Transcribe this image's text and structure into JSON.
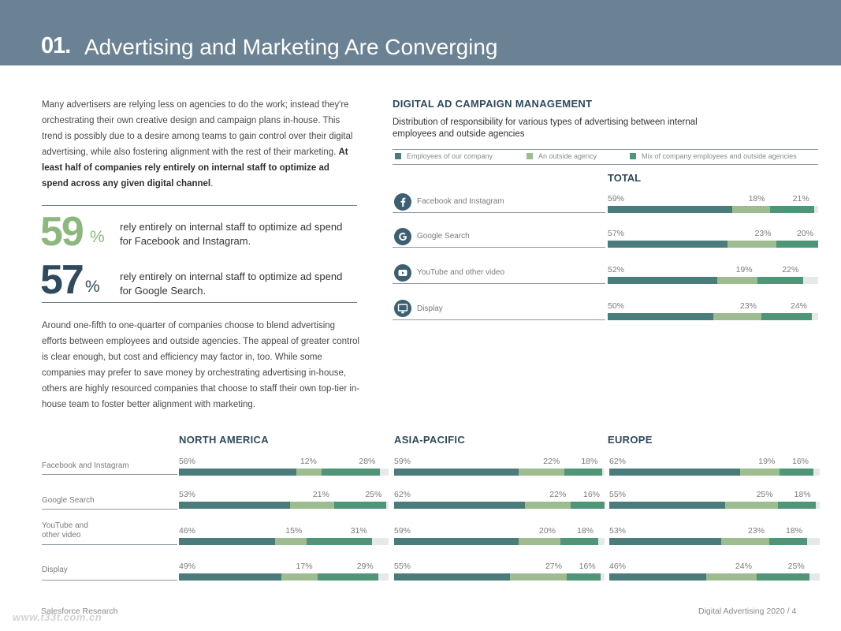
{
  "header": {
    "number": "01.",
    "title": "Advertising and Marketing Are Converging"
  },
  "intro": {
    "text": "Many advertisers are relying less on agencies to do the work; instead they're orchestrating their own creative design and campaign plans in-house. This trend is possibly due to a desire among teams to gain control over their digital advertising, while also fostering alignment with the rest of their marketing. ",
    "bold": "At least half of companies rely entirely on internal staff to optimize ad spend across any given digital channel",
    "end": "."
  },
  "stats": [
    {
      "value": "59",
      "unit": "%",
      "text": "rely entirely on internal staff to optimize ad spend for Facebook and Instagram.",
      "color": "#8db87d"
    },
    {
      "value": "57",
      "unit": "%",
      "text": "rely entirely on internal staff to optimize ad spend for Google Search.",
      "color": "#2f4a5c"
    }
  ],
  "para2": "Around one-fifth to one-quarter of companies choose to blend advertising efforts between employees and outside agencies. The appeal of greater control is clear enough, but cost and efficiency may factor in, too. While some companies may prefer to save money by orchestrating advertising in-house, others are highly resourced companies that choose to staff their own top-tier in-house team to foster better alignment with marketing.",
  "chart_meta": {
    "title": "DIGITAL AD CAMPAIGN MANAGEMENT",
    "subtitle": "Distribution of responsibility for various types of advertising between internal employees and outside agencies",
    "total_label": "TOTAL"
  },
  "legend": [
    {
      "label": "Employees of our company",
      "color": "#4a7c7c"
    },
    {
      "label": "An outside agency",
      "color": "#9dbc8f"
    },
    {
      "label": "Mix of company employees and outside agencies",
      "color": "#4f9578"
    }
  ],
  "chart_data": [
    {
      "type": "bar",
      "title": "TOTAL",
      "stacked": true,
      "orientation": "horizontal",
      "categories": [
        "Facebook and Instagram",
        "Google Search",
        "YouTube and other video",
        "Display"
      ],
      "series": [
        {
          "name": "Employees of our company",
          "values": [
            59,
            57,
            52,
            50
          ]
        },
        {
          "name": "An outside agency",
          "values": [
            18,
            23,
            19,
            23
          ]
        },
        {
          "name": "Mix of company employees and outside agencies",
          "values": [
            21,
            20,
            22,
            24
          ]
        }
      ],
      "xlim": [
        0,
        100
      ]
    },
    {
      "type": "bar",
      "title": "NORTH AMERICA",
      "stacked": true,
      "orientation": "horizontal",
      "categories": [
        "Facebook and Instagram",
        "Google Search",
        "YouTube and other video",
        "Display"
      ],
      "series": [
        {
          "name": "Employees of our company",
          "values": [
            56,
            53,
            46,
            49
          ]
        },
        {
          "name": "An outside agency",
          "values": [
            12,
            21,
            15,
            17
          ]
        },
        {
          "name": "Mix of company employees and outside agencies",
          "values": [
            28,
            25,
            31,
            29
          ]
        }
      ],
      "xlim": [
        0,
        100
      ]
    },
    {
      "type": "bar",
      "title": "ASIA-PACIFIC",
      "stacked": true,
      "orientation": "horizontal",
      "categories": [
        "Facebook and Instagram",
        "Google Search",
        "YouTube and other video",
        "Display"
      ],
      "series": [
        {
          "name": "Employees of our company",
          "values": [
            59,
            62,
            59,
            55
          ]
        },
        {
          "name": "An outside agency",
          "values": [
            22,
            22,
            20,
            27
          ]
        },
        {
          "name": "Mix of company employees and outside agencies",
          "values": [
            18,
            16,
            18,
            16
          ]
        }
      ],
      "xlim": [
        0,
        100
      ]
    },
    {
      "type": "bar",
      "title": "EUROPE",
      "stacked": true,
      "orientation": "horizontal",
      "categories": [
        "Facebook and Instagram",
        "Google Search",
        "YouTube and other video",
        "Display"
      ],
      "series": [
        {
          "name": "Employees of our company",
          "values": [
            62,
            55,
            53,
            46
          ]
        },
        {
          "name": "An outside agency",
          "values": [
            19,
            25,
            23,
            24
          ]
        },
        {
          "name": "Mix of company employees and outside agencies",
          "values": [
            16,
            18,
            18,
            25
          ]
        }
      ],
      "xlim": [
        0,
        100
      ]
    }
  ],
  "total_rows": [
    {
      "label": "Facebook and Instagram",
      "icon": "facebook-icon"
    },
    {
      "label": "Google Search",
      "icon": "google-icon"
    },
    {
      "label": "YouTube and other video",
      "icon": "youtube-icon"
    },
    {
      "label": "Display",
      "icon": "display-icon"
    }
  ],
  "region_rows": [
    {
      "label": "Facebook and Instagram"
    },
    {
      "label": "Google Search"
    },
    {
      "label": "YouTube and\nother video"
    },
    {
      "label": "Display"
    }
  ],
  "footer": {
    "left": "Salesforce Research",
    "right": "Digital Advertising 2020",
    "page": "4"
  },
  "watermark": "www.t33t.com.cn"
}
